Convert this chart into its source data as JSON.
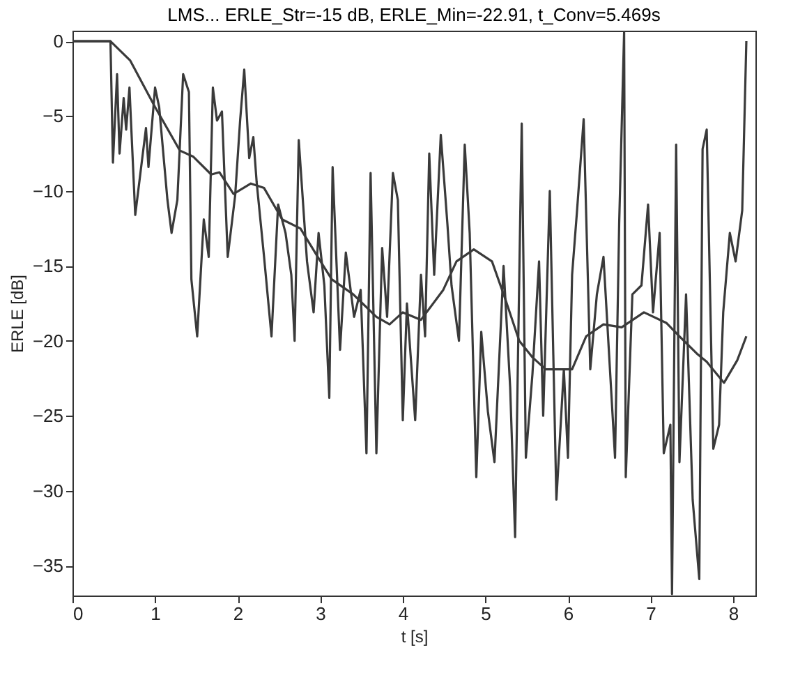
{
  "chart_data": {
    "type": "line",
    "title": "LMS... ERLE_Str=-15 dB, ERLE_Min=-22.91, t_Conv=5.469s",
    "xlabel": "t [s]",
    "ylabel": "ERLE [dB]",
    "xlim": [
      0,
      8.27
    ],
    "ylim": [
      -37,
      0.7
    ],
    "xticks": [
      0,
      1,
      2,
      3,
      4,
      5,
      6,
      7,
      8
    ],
    "yticks": [
      0,
      -5,
      -10,
      -15,
      -20,
      -25,
      -30,
      -35
    ],
    "grid": false,
    "line_style": "solid",
    "marker": "none",
    "series": [
      {
        "color": "#3a3a3a",
        "x": [
          0,
          0.46,
          0.49,
          0.54,
          0.57,
          0.62,
          0.65,
          0.69,
          0.76,
          0.89,
          0.92,
          1.0,
          1.05,
          1.15,
          1.2,
          1.27,
          1.34,
          1.41,
          1.44,
          1.51,
          1.59,
          1.65,
          1.7,
          1.75,
          1.81,
          1.88,
          1.97,
          2.03,
          2.08,
          2.14,
          2.19,
          2.23,
          2.32,
          2.41,
          2.49,
          2.58,
          2.65,
          2.69,
          2.74,
          2.84,
          2.92,
          2.98,
          3.05,
          3.11,
          3.15,
          3.24,
          3.31,
          3.41,
          3.49,
          3.56,
          3.61,
          3.68,
          3.75,
          3.81,
          3.88,
          3.94,
          4.0,
          4.05,
          4.15,
          4.22,
          4.27,
          4.32,
          4.38,
          4.46,
          4.54,
          4.59,
          4.68,
          4.75,
          4.81,
          4.89,
          4.95,
          5.03,
          5.11,
          5.22,
          5.3,
          5.36,
          5.44,
          5.49,
          5.57,
          5.65,
          5.7,
          5.78,
          5.86,
          5.95,
          6.0,
          6.05,
          6.11,
          6.19,
          6.27,
          6.35,
          6.43,
          6.57,
          6.62,
          6.68,
          6.7,
          6.78,
          6.89,
          6.97,
          7.03,
          7.11,
          7.16,
          7.24,
          7.26,
          7.31,
          7.35,
          7.43,
          7.51,
          7.59,
          7.63,
          7.68,
          7.76,
          7.83,
          7.88,
          7.96,
          8.03,
          8.11,
          8.16
        ],
        "values": [
          0,
          0,
          -8.1,
          -2.2,
          -7.5,
          -3.8,
          -5.9,
          -3.1,
          -11.6,
          -5.8,
          -8.4,
          -3.1,
          -4.4,
          -10.6,
          -12.8,
          -10.6,
          -2.2,
          -3.4,
          -15.9,
          -19.7,
          -11.9,
          -14.4,
          -3.1,
          -5.3,
          -4.7,
          -14.4,
          -10.3,
          -5.3,
          -1.9,
          -7.8,
          -6.4,
          -9.4,
          -14.4,
          -19.7,
          -10.9,
          -12.8,
          -15.6,
          -20,
          -6.6,
          -14.7,
          -18.1,
          -12.8,
          -16.3,
          -23.8,
          -8.4,
          -20.6,
          -14.1,
          -18.4,
          -16.6,
          -27.5,
          -8.8,
          -27.5,
          -13.8,
          -18.4,
          -8.8,
          -10.6,
          -25.3,
          -17.5,
          -25.3,
          -15.6,
          -19.7,
          -7.5,
          -15.6,
          -6.25,
          -12.2,
          -16.3,
          -20,
          -6.9,
          -12.8,
          -29.1,
          -19.4,
          -24.7,
          -28.1,
          -15,
          -23.1,
          -33.1,
          -5.5,
          -27.8,
          -22.2,
          -14.7,
          -25,
          -10,
          -30.6,
          -21.9,
          -27.8,
          -15.6,
          -11.3,
          -5.2,
          -21.9,
          -16.9,
          -14.4,
          -27.8,
          -12.2,
          0.6,
          -29.1,
          -16.9,
          -16.3,
          -10.9,
          -18.1,
          -12.8,
          -27.5,
          -25.6,
          -36.9,
          -6.9,
          -28.1,
          -16.9,
          -30.6,
          -35.9,
          -7.2,
          -5.9,
          -27.2,
          -25.6,
          -18.1,
          -12.8,
          -14.7,
          -11.3,
          0
        ]
      },
      {
        "color": "#3a3a3a",
        "x": [
          0,
          0.46,
          0.7,
          1.0,
          1.3,
          1.46,
          1.68,
          1.78,
          1.95,
          2.16,
          2.32,
          2.54,
          2.76,
          2.97,
          3.14,
          3.4,
          3.68,
          3.84,
          4.0,
          4.22,
          4.49,
          4.65,
          4.86,
          5.08,
          5.24,
          5.41,
          5.57,
          5.73,
          6.05,
          6.22,
          6.43,
          6.65,
          6.92,
          7.19,
          7.35,
          7.57,
          7.68,
          7.89,
          8.05,
          8.16
        ],
        "values": [
          0,
          0,
          -1.3,
          -4.4,
          -7.3,
          -7.7,
          -8.9,
          -8.75,
          -10.2,
          -9.5,
          -9.8,
          -11.9,
          -12.5,
          -14.4,
          -15.9,
          -16.9,
          -18.4,
          -18.9,
          -18.1,
          -18.6,
          -16.6,
          -14.7,
          -13.9,
          -14.7,
          -17.2,
          -20,
          -21.1,
          -21.9,
          -21.9,
          -19.7,
          -18.9,
          -19.1,
          -18.1,
          -18.8,
          -19.7,
          -20.9,
          -21.4,
          -22.8,
          -21.3,
          -19.7
        ]
      }
    ]
  }
}
